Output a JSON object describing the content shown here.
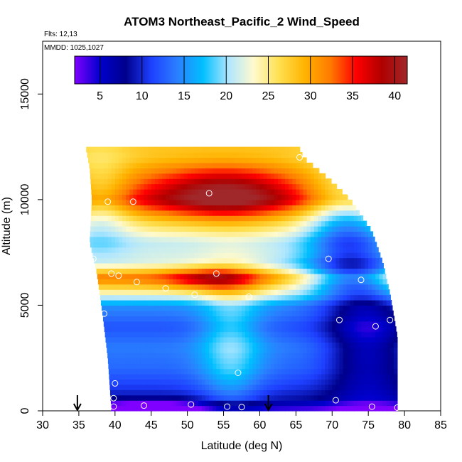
{
  "chart_data": {
    "type": "heatmap",
    "title": "ATOM3 Northeast_Pacific_2 Wind_Speed",
    "flights_note": "Flts: 12,13",
    "dates_note": "MMDD: 1025,1027",
    "xlabel": "Latitude (deg N)",
    "ylabel": "Altitude (m)",
    "xlim": [
      30,
      85
    ],
    "ylim": [
      0,
      17500
    ],
    "x_ticks": [
      30,
      35,
      40,
      45,
      50,
      55,
      60,
      65,
      70,
      75,
      80,
      85
    ],
    "y_ticks": [
      0,
      5000,
      10000,
      15000
    ],
    "colorbar": {
      "range": [
        2,
        41.5
      ],
      "ticks": [
        5,
        10,
        15,
        20,
        25,
        30,
        35,
        40
      ],
      "colors": [
        "#7f00ff",
        "#0000cd",
        "#00008b",
        "#1e40ff",
        "#2a7fff",
        "#00bfff",
        "#aee6ff",
        "#fffacd",
        "#ffe050",
        "#ffb300",
        "#ff7a00",
        "#ff0000",
        "#b00000",
        "#a0282a"
      ]
    },
    "grid": false,
    "legend": "colorbar top",
    "altitude_profile": [
      {
        "alt": 200,
        "ws": 4
      },
      {
        "alt": 600,
        "ws": 9
      },
      {
        "alt": 1200,
        "ws": 11
      },
      {
        "alt": 2000,
        "ws": 13
      },
      {
        "alt": 3000,
        "ws": 14
      },
      {
        "alt": 4000,
        "ws": 12
      },
      {
        "alt": 5000,
        "ws": 15
      },
      {
        "alt": 5600,
        "ws": 24
      },
      {
        "alt": 6300,
        "ws": 33
      },
      {
        "alt": 7000,
        "ws": 22
      },
      {
        "alt": 8000,
        "ws": 21
      },
      {
        "alt": 9000,
        "ws": 27
      },
      {
        "alt": 10000,
        "ws": 36
      },
      {
        "alt": 11000,
        "ws": 32
      },
      {
        "alt": 12000,
        "ws": 28
      }
    ],
    "left_edge": [
      {
        "alt": 0,
        "lat": 39.5
      },
      {
        "alt": 2500,
        "lat": 39.0
      },
      {
        "alt": 4500,
        "lat": 38.3
      },
      {
        "alt": 6500,
        "lat": 37.5
      },
      {
        "alt": 8000,
        "lat": 36.5
      },
      {
        "alt": 10000,
        "lat": 36.8
      },
      {
        "alt": 11500,
        "lat": 36.5
      },
      {
        "alt": 12400,
        "lat": 36.0
      }
    ],
    "right_edge": [
      {
        "alt": 0,
        "lat": 79.0
      },
      {
        "alt": 3500,
        "lat": 79.0
      },
      {
        "alt": 5500,
        "lat": 78.0
      },
      {
        "alt": 7000,
        "lat": 77.0
      },
      {
        "alt": 8500,
        "lat": 75.5
      },
      {
        "alt": 10000,
        "lat": 72.5
      },
      {
        "alt": 11000,
        "lat": 69.5
      },
      {
        "alt": 12000,
        "lat": 66.0
      },
      {
        "alt": 12400,
        "lat": 65.5
      }
    ],
    "observation_points": [
      {
        "lat": 39.8,
        "alt": 200
      },
      {
        "lat": 44.0,
        "alt": 250
      },
      {
        "lat": 50.5,
        "alt": 300
      },
      {
        "lat": 55.5,
        "alt": 200
      },
      {
        "lat": 57.5,
        "alt": 180
      },
      {
        "lat": 70.5,
        "alt": 500
      },
      {
        "lat": 75.5,
        "alt": 200
      },
      {
        "lat": 79.0,
        "alt": 150
      },
      {
        "lat": 39.8,
        "alt": 600
      },
      {
        "lat": 40.0,
        "alt": 1300
      },
      {
        "lat": 57.0,
        "alt": 1800
      },
      {
        "lat": 38.5,
        "alt": 4600
      },
      {
        "lat": 71.0,
        "alt": 4300
      },
      {
        "lat": 76.0,
        "alt": 4000
      },
      {
        "lat": 78.0,
        "alt": 4300
      },
      {
        "lat": 79.5,
        "alt": 3800
      },
      {
        "lat": 47.0,
        "alt": 5800
      },
      {
        "lat": 51.0,
        "alt": 5500
      },
      {
        "lat": 58.5,
        "alt": 5400
      },
      {
        "lat": 43.0,
        "alt": 6100
      },
      {
        "lat": 39.5,
        "alt": 6500
      },
      {
        "lat": 40.5,
        "alt": 6400
      },
      {
        "lat": 54.0,
        "alt": 6500
      },
      {
        "lat": 74.0,
        "alt": 6200
      },
      {
        "lat": 37.0,
        "alt": 7200
      },
      {
        "lat": 69.5,
        "alt": 7200
      },
      {
        "lat": 77.5,
        "alt": 7400
      },
      {
        "lat": 39.0,
        "alt": 9900
      },
      {
        "lat": 42.5,
        "alt": 9900
      },
      {
        "lat": 53.0,
        "alt": 10300
      },
      {
        "lat": 65.5,
        "alt": 12000
      },
      {
        "lat": 72.5,
        "alt": 10300
      }
    ],
    "flight_markers": [
      34.8,
      61.2
    ]
  }
}
